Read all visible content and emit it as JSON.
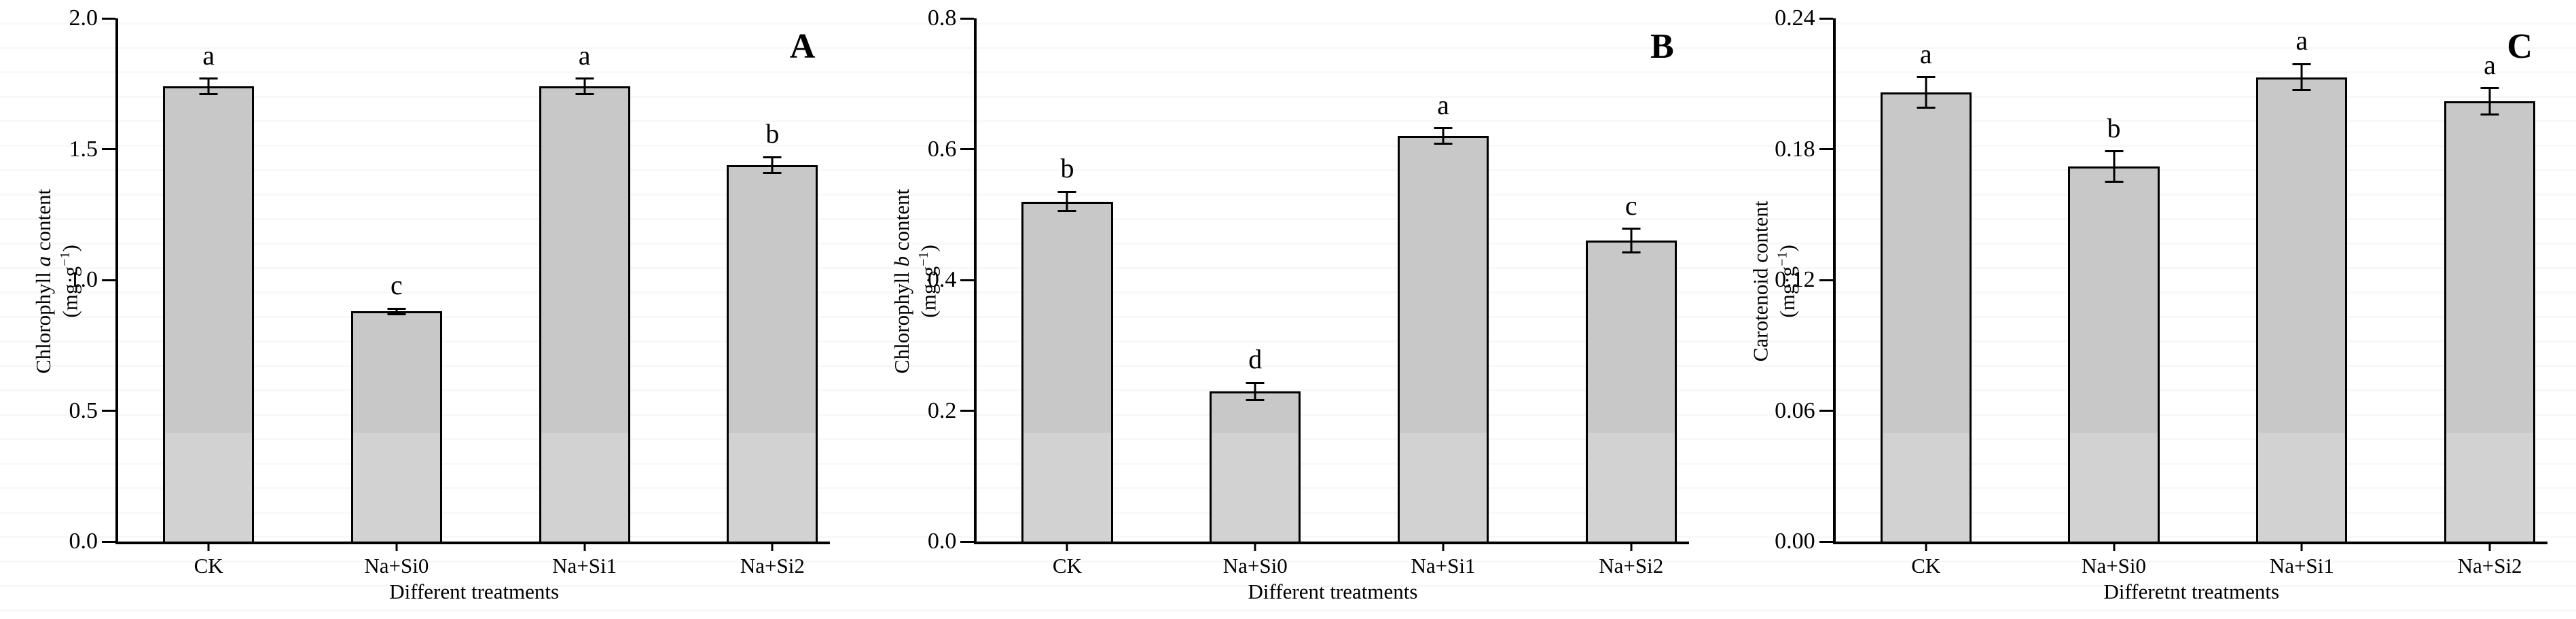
{
  "figure": {
    "background": "#ffffff",
    "bar_fill_top": "#c8c8c8",
    "bar_fill_bottom": "#d2d2d2",
    "axis_color": "#000000"
  },
  "chart_data": [
    {
      "type": "bar",
      "panel_label": "A",
      "ylabel": {
        "pre": "Chlorophyll ",
        "italic": "a",
        "post": " content"
      },
      "unit": {
        "open": "(mg·g",
        "sup": "−1",
        "close": ")"
      },
      "xlabel": "Different treatments",
      "categories": [
        "CK",
        "Na+Si0",
        "Na+Si1",
        "Na+Si2"
      ],
      "values": [
        1.74,
        0.88,
        1.74,
        1.44
      ],
      "errors": [
        0.03,
        0.01,
        0.03,
        0.03
      ],
      "sig_letters": [
        "a",
        "c",
        "a",
        "b"
      ],
      "ylim": [
        0,
        2.0
      ],
      "ytick_labels": [
        "0.0",
        "0.5",
        "1.0",
        "1.5",
        "2.0"
      ],
      "grid": false,
      "legend": "none"
    },
    {
      "type": "bar",
      "panel_label": "B",
      "ylabel": {
        "pre": "Chlorophyll ",
        "italic": "b",
        "post": " content"
      },
      "unit": {
        "open": "(mg·g",
        "sup": "−1",
        "close": ")"
      },
      "xlabel": "Different treatments",
      "categories": [
        "CK",
        "Na+Si0",
        "Na+Si1",
        "Na+Si2"
      ],
      "values": [
        0.52,
        0.23,
        0.62,
        0.46
      ],
      "errors": [
        0.015,
        0.013,
        0.012,
        0.018
      ],
      "sig_letters": [
        "b",
        "d",
        "a",
        "c"
      ],
      "ylim": [
        0,
        0.8
      ],
      "ytick_labels": [
        "0.0",
        "0.2",
        "0.4",
        "0.6",
        "0.8"
      ],
      "grid": false,
      "legend": "none"
    },
    {
      "type": "bar",
      "panel_label": "C",
      "ylabel": {
        "pre": "Carotenoid content",
        "italic": "",
        "post": ""
      },
      "unit": {
        "open": "(mg·g",
        "sup": "−1",
        "close": ")"
      },
      "xlabel": "Differetnt treatments",
      "categories": [
        "CK",
        "Na+Si0",
        "Na+Si1",
        "Na+Si2"
      ],
      "values": [
        0.206,
        0.172,
        0.213,
        0.202
      ],
      "errors": [
        0.007,
        0.007,
        0.006,
        0.006
      ],
      "sig_letters": [
        "a",
        "b",
        "a",
        "a"
      ],
      "ylim": [
        0,
        0.24
      ],
      "ytick_labels": [
        "0.00",
        "0.06",
        "0.12",
        "0.18",
        "0.24"
      ],
      "grid": false,
      "legend": "none"
    }
  ]
}
